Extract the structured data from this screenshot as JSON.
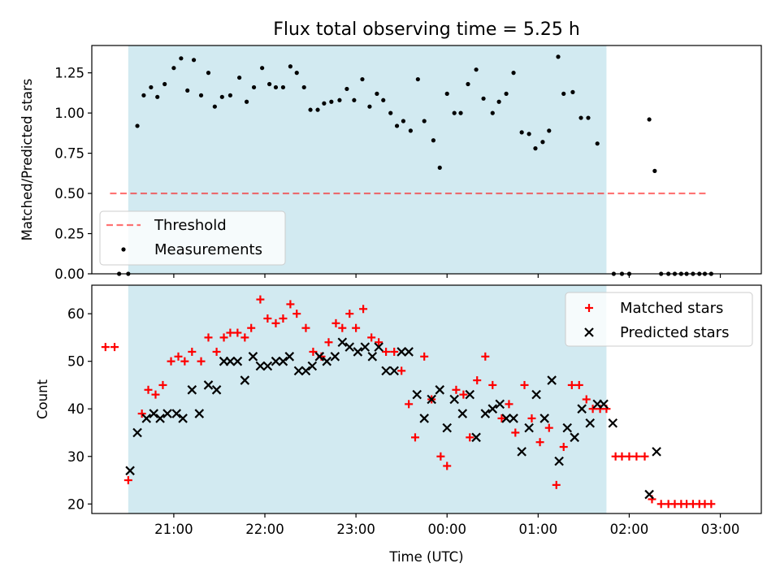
{
  "title": "Flux total observing time = 5.25 h",
  "colors": {
    "shade": "#add8e6",
    "threshold": "#ff0000",
    "measurement": "#000000",
    "matched": "#ff0000",
    "predicted": "#000000"
  },
  "chart_data": [
    {
      "type": "scatter",
      "ylabel": "Matched/Predicted stars",
      "xlabel": "",
      "xlim": [
        -0.9,
        6.45
      ],
      "ylim": [
        0,
        1.42
      ],
      "yticks": [
        "0.00",
        "0.25",
        "0.50",
        "0.75",
        "1.00",
        "1.25"
      ],
      "yticks_values": [
        0,
        0.25,
        0.5,
        0.75,
        1.0,
        1.25
      ],
      "shaded_interval": [
        -0.5,
        4.75
      ],
      "legend": {
        "position": "lower-left",
        "entries": [
          "Threshold",
          "Measurements"
        ]
      },
      "threshold": {
        "name": "Threshold",
        "value": 0.5,
        "x_range": [
          -0.7,
          5.85
        ],
        "style": "dashed"
      },
      "series": [
        {
          "name": "Measurements",
          "marker": "dot",
          "points": [
            [
              -0.6,
              0
            ],
            [
              -0.5,
              0
            ],
            [
              -0.4,
              0.92
            ],
            [
              -0.33,
              1.11
            ],
            [
              -0.25,
              1.16
            ],
            [
              -0.18,
              1.1
            ],
            [
              -0.1,
              1.18
            ],
            [
              0,
              1.28
            ],
            [
              0.08,
              1.34
            ],
            [
              0.15,
              1.14
            ],
            [
              0.22,
              1.33
            ],
            [
              0.3,
              1.11
            ],
            [
              0.38,
              1.25
            ],
            [
              0.45,
              1.04
            ],
            [
              0.53,
              1.1
            ],
            [
              0.62,
              1.11
            ],
            [
              0.72,
              1.22
            ],
            [
              0.8,
              1.07
            ],
            [
              0.88,
              1.16
            ],
            [
              0.97,
              1.28
            ],
            [
              1.05,
              1.18
            ],
            [
              1.12,
              1.16
            ],
            [
              1.2,
              1.16
            ],
            [
              1.28,
              1.29
            ],
            [
              1.35,
              1.25
            ],
            [
              1.43,
              1.16
            ],
            [
              1.5,
              1.02
            ],
            [
              1.58,
              1.02
            ],
            [
              1.65,
              1.06
            ],
            [
              1.73,
              1.07
            ],
            [
              1.82,
              1.08
            ],
            [
              1.9,
              1.15
            ],
            [
              1.98,
              1.08
            ],
            [
              2.07,
              1.21
            ],
            [
              2.15,
              1.04
            ],
            [
              2.23,
              1.12
            ],
            [
              2.3,
              1.08
            ],
            [
              2.38,
              1.0
            ],
            [
              2.45,
              0.92
            ],
            [
              2.52,
              0.95
            ],
            [
              2.6,
              0.89
            ],
            [
              2.68,
              1.21
            ],
            [
              2.75,
              0.95
            ],
            [
              2.85,
              0.83
            ],
            [
              2.92,
              0.66
            ],
            [
              3.0,
              1.12
            ],
            [
              3.08,
              1.0
            ],
            [
              3.15,
              1.0
            ],
            [
              3.23,
              1.18
            ],
            [
              3.32,
              1.27
            ],
            [
              3.4,
              1.09
            ],
            [
              3.5,
              1.0
            ],
            [
              3.57,
              1.07
            ],
            [
              3.65,
              1.12
            ],
            [
              3.73,
              1.25
            ],
            [
              3.82,
              0.88
            ],
            [
              3.9,
              0.87
            ],
            [
              3.97,
              0.78
            ],
            [
              4.05,
              0.82
            ],
            [
              4.12,
              0.89
            ],
            [
              4.22,
              1.35
            ],
            [
              4.28,
              1.12
            ],
            [
              4.38,
              1.13
            ],
            [
              4.47,
              0.97
            ],
            [
              4.55,
              0.97
            ],
            [
              4.65,
              0.81
            ],
            [
              4.83,
              0
            ],
            [
              4.92,
              0
            ],
            [
              5.0,
              0
            ],
            [
              5.22,
              0.96
            ],
            [
              5.28,
              0.64
            ],
            [
              5.35,
              0
            ],
            [
              5.43,
              0
            ],
            [
              5.5,
              0
            ],
            [
              5.57,
              0
            ],
            [
              5.63,
              0
            ],
            [
              5.7,
              0
            ],
            [
              5.77,
              0
            ],
            [
              5.83,
              0
            ],
            [
              5.9,
              0
            ]
          ]
        }
      ]
    },
    {
      "type": "scatter",
      "ylabel": "Count",
      "xlabel": "Time (UTC)",
      "xlim": [
        -0.9,
        6.45
      ],
      "ylim": [
        18,
        66
      ],
      "yticks": [
        "20",
        "30",
        "40",
        "50",
        "60"
      ],
      "yticks_values": [
        20,
        30,
        40,
        50,
        60
      ],
      "xticks": [
        "21:00",
        "22:00",
        "23:00",
        "00:00",
        "01:00",
        "02:00",
        "03:00"
      ],
      "xticks_values": [
        0,
        1,
        2,
        3,
        4,
        5,
        6
      ],
      "shaded_interval": [
        -0.5,
        4.75
      ],
      "legend": {
        "position": "top-right",
        "entries": [
          "Matched stars",
          "Predicted stars"
        ]
      },
      "series": [
        {
          "name": "Matched stars",
          "marker": "plus",
          "points": [
            [
              -0.75,
              53
            ],
            [
              -0.65,
              53
            ],
            [
              -0.5,
              25
            ],
            [
              -0.35,
              39
            ],
            [
              -0.28,
              44
            ],
            [
              -0.2,
              43
            ],
            [
              -0.12,
              45
            ],
            [
              -0.03,
              50
            ],
            [
              0.05,
              51
            ],
            [
              0.12,
              50
            ],
            [
              0.2,
              52
            ],
            [
              0.3,
              50
            ],
            [
              0.38,
              55
            ],
            [
              0.47,
              52
            ],
            [
              0.55,
              55
            ],
            [
              0.62,
              56
            ],
            [
              0.7,
              56
            ],
            [
              0.78,
              55
            ],
            [
              0.85,
              57
            ],
            [
              0.95,
              63
            ],
            [
              1.03,
              59
            ],
            [
              1.12,
              58
            ],
            [
              1.2,
              59
            ],
            [
              1.28,
              62
            ],
            [
              1.35,
              60
            ],
            [
              1.45,
              57
            ],
            [
              1.53,
              52
            ],
            [
              1.62,
              51
            ],
            [
              1.7,
              54
            ],
            [
              1.78,
              58
            ],
            [
              1.85,
              57
            ],
            [
              1.93,
              60
            ],
            [
              2.0,
              57
            ],
            [
              2.08,
              61
            ],
            [
              2.17,
              55
            ],
            [
              2.25,
              54
            ],
            [
              2.33,
              52
            ],
            [
              2.42,
              52
            ],
            [
              2.5,
              48
            ],
            [
              2.58,
              41
            ],
            [
              2.65,
              34
            ],
            [
              2.75,
              51
            ],
            [
              2.83,
              42
            ],
            [
              2.93,
              30
            ],
            [
              3.0,
              28
            ],
            [
              3.1,
              44
            ],
            [
              3.18,
              43
            ],
            [
              3.25,
              34
            ],
            [
              3.33,
              46
            ],
            [
              3.42,
              51
            ],
            [
              3.5,
              45
            ],
            [
              3.6,
              38
            ],
            [
              3.68,
              41
            ],
            [
              3.75,
              35
            ],
            [
              3.85,
              45
            ],
            [
              3.93,
              38
            ],
            [
              4.02,
              33
            ],
            [
              4.12,
              36
            ],
            [
              4.2,
              24
            ],
            [
              4.28,
              32
            ],
            [
              4.37,
              45
            ],
            [
              4.45,
              45
            ],
            [
              4.53,
              42
            ],
            [
              4.6,
              40
            ],
            [
              4.68,
              40
            ],
            [
              4.75,
              40
            ],
            [
              4.85,
              30
            ],
            [
              4.92,
              30
            ],
            [
              5.0,
              30
            ],
            [
              5.08,
              30
            ],
            [
              5.17,
              30
            ],
            [
              5.25,
              21
            ],
            [
              5.35,
              20
            ],
            [
              5.43,
              20
            ],
            [
              5.5,
              20
            ],
            [
              5.57,
              20
            ],
            [
              5.63,
              20
            ],
            [
              5.7,
              20
            ],
            [
              5.77,
              20
            ],
            [
              5.83,
              20
            ],
            [
              5.9,
              20
            ]
          ]
        },
        {
          "name": "Predicted stars",
          "marker": "x",
          "points": [
            [
              -0.48,
              27
            ],
            [
              -0.4,
              35
            ],
            [
              -0.3,
              38
            ],
            [
              -0.22,
              39
            ],
            [
              -0.15,
              38
            ],
            [
              -0.07,
              39
            ],
            [
              0.03,
              39
            ],
            [
              0.1,
              38
            ],
            [
              0.2,
              44
            ],
            [
              0.28,
              39
            ],
            [
              0.38,
              45
            ],
            [
              0.47,
              44
            ],
            [
              0.55,
              50
            ],
            [
              0.62,
              50
            ],
            [
              0.7,
              50
            ],
            [
              0.78,
              46
            ],
            [
              0.87,
              51
            ],
            [
              0.95,
              49
            ],
            [
              1.03,
              49
            ],
            [
              1.12,
              50
            ],
            [
              1.2,
              50
            ],
            [
              1.27,
              51
            ],
            [
              1.37,
              48
            ],
            [
              1.45,
              48
            ],
            [
              1.52,
              49
            ],
            [
              1.6,
              51
            ],
            [
              1.68,
              50
            ],
            [
              1.77,
              51
            ],
            [
              1.85,
              54
            ],
            [
              1.93,
              53
            ],
            [
              2.02,
              52
            ],
            [
              2.1,
              53
            ],
            [
              2.18,
              51
            ],
            [
              2.25,
              53
            ],
            [
              2.33,
              48
            ],
            [
              2.42,
              48
            ],
            [
              2.5,
              52
            ],
            [
              2.58,
              52
            ],
            [
              2.67,
              43
            ],
            [
              2.75,
              38
            ],
            [
              2.83,
              42
            ],
            [
              2.92,
              44
            ],
            [
              3.0,
              36
            ],
            [
              3.08,
              42
            ],
            [
              3.17,
              39
            ],
            [
              3.25,
              43
            ],
            [
              3.32,
              34
            ],
            [
              3.42,
              39
            ],
            [
              3.5,
              40
            ],
            [
              3.58,
              41
            ],
            [
              3.65,
              38
            ],
            [
              3.73,
              38
            ],
            [
              3.82,
              31
            ],
            [
              3.9,
              36
            ],
            [
              3.98,
              43
            ],
            [
              4.07,
              38
            ],
            [
              4.15,
              46
            ],
            [
              4.23,
              29
            ],
            [
              4.32,
              36
            ],
            [
              4.4,
              34
            ],
            [
              4.48,
              40
            ],
            [
              4.57,
              37
            ],
            [
              4.65,
              41
            ],
            [
              4.72,
              41
            ],
            [
              4.82,
              37
            ],
            [
              5.22,
              22
            ],
            [
              5.3,
              31
            ]
          ]
        }
      ]
    }
  ]
}
